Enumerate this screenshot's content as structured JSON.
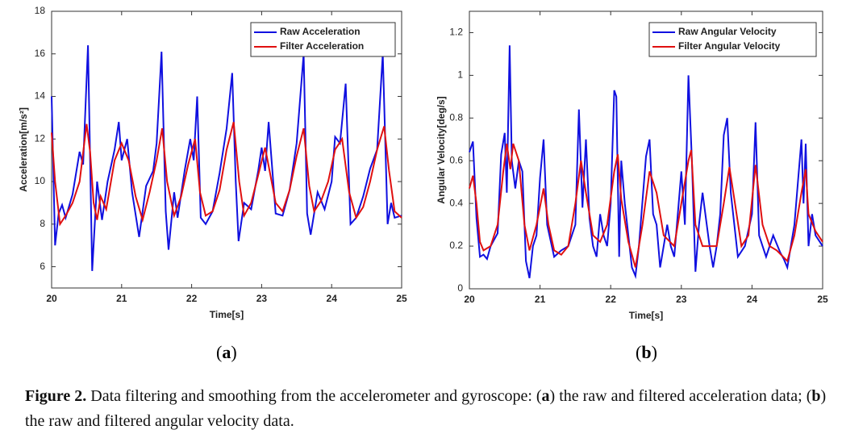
{
  "chart_data": [
    {
      "type": "line",
      "xlabel": "Time[s]",
      "ylabel": "Acceleration[m/s²]",
      "xlim": [
        20,
        25
      ],
      "xticks": [
        20,
        21,
        22,
        23,
        24,
        25
      ],
      "ylim": [
        5,
        18
      ],
      "yticks": [
        6,
        8,
        10,
        12,
        14,
        16,
        18
      ],
      "grid": false,
      "legend": "upper right",
      "series": [
        {
          "name": "Raw Acceleration",
          "color": "#1010e0",
          "x": [
            20.0,
            20.05,
            20.1,
            20.15,
            20.2,
            20.3,
            20.4,
            20.45,
            20.52,
            20.58,
            20.65,
            20.72,
            20.8,
            20.9,
            20.96,
            21.0,
            21.08,
            21.15,
            21.25,
            21.35,
            21.45,
            21.5,
            21.57,
            21.63,
            21.67,
            21.75,
            21.8,
            21.9,
            21.98,
            22.03,
            22.08,
            22.13,
            22.2,
            22.3,
            22.4,
            22.5,
            22.58,
            22.63,
            22.67,
            22.75,
            22.85,
            22.95,
            23.0,
            23.05,
            23.1,
            23.2,
            23.3,
            23.4,
            23.5,
            23.6,
            23.65,
            23.7,
            23.8,
            23.9,
            24.0,
            24.05,
            24.12,
            24.2,
            24.27,
            24.35,
            24.45,
            24.55,
            24.65,
            24.73,
            24.8,
            24.85,
            24.9,
            25.0
          ],
          "values": [
            14.0,
            7.0,
            8.5,
            8.9,
            8.3,
            9.4,
            11.4,
            10.8,
            16.4,
            5.8,
            10.0,
            8.2,
            10.0,
            11.5,
            12.8,
            11.0,
            12.0,
            9.5,
            7.4,
            9.8,
            10.5,
            11.8,
            16.1,
            8.6,
            6.8,
            9.5,
            8.3,
            10.5,
            12.0,
            11.0,
            14.0,
            8.3,
            8.0,
            8.6,
            10.4,
            12.5,
            15.1,
            10.0,
            7.2,
            9.0,
            8.7,
            10.5,
            11.6,
            10.5,
            12.8,
            8.5,
            8.4,
            9.6,
            11.8,
            16.0,
            8.5,
            7.5,
            9.5,
            8.7,
            10.0,
            12.1,
            11.8,
            14.6,
            8.0,
            8.3,
            9.3,
            10.6,
            11.5,
            16.0,
            8.0,
            9.0,
            8.3,
            8.4
          ]
        },
        {
          "name": "Filter Acceleration",
          "color": "#e01010",
          "x": [
            20.0,
            20.05,
            20.12,
            20.2,
            20.3,
            20.4,
            20.5,
            20.55,
            20.6,
            20.65,
            20.7,
            20.78,
            20.9,
            21.0,
            21.1,
            21.2,
            21.3,
            21.4,
            21.5,
            21.58,
            21.65,
            21.75,
            21.85,
            21.95,
            22.05,
            22.12,
            22.2,
            22.3,
            22.4,
            22.5,
            22.6,
            22.68,
            22.75,
            22.85,
            22.95,
            23.05,
            23.12,
            23.2,
            23.3,
            23.4,
            23.5,
            23.6,
            23.68,
            23.75,
            23.85,
            23.95,
            24.05,
            24.15,
            24.25,
            24.35,
            24.45,
            24.55,
            24.65,
            24.75,
            24.82,
            24.9,
            25.0
          ],
          "values": [
            12.3,
            10.0,
            8.0,
            8.4,
            9.0,
            10.0,
            12.7,
            11.4,
            9.0,
            8.2,
            9.3,
            8.7,
            11.0,
            11.8,
            11.0,
            9.3,
            8.2,
            9.5,
            11.0,
            12.5,
            10.0,
            8.4,
            9.3,
            10.8,
            12.0,
            9.5,
            8.4,
            8.6,
            9.6,
            11.5,
            12.8,
            10.0,
            8.4,
            9.0,
            10.3,
            11.6,
            10.4,
            9.0,
            8.6,
            9.6,
            11.2,
            12.5,
            9.8,
            8.6,
            9.1,
            10.0,
            11.5,
            12.0,
            9.5,
            8.3,
            8.8,
            10.0,
            11.5,
            12.6,
            10.5,
            8.6,
            8.3
          ]
        }
      ]
    },
    {
      "type": "line",
      "xlabel": "Time[s]",
      "ylabel": "Angular Velocity[deg/s]",
      "xlim": [
        20,
        25
      ],
      "xticks": [
        20,
        21,
        22,
        23,
        24,
        25
      ],
      "ylim": [
        0,
        1.3
      ],
      "yticks": [
        0,
        0.2,
        0.4,
        0.6,
        0.8,
        1,
        1.2
      ],
      "grid": false,
      "legend": "upper right",
      "series": [
        {
          "name": "Raw Angular Velocity",
          "color": "#1010e0",
          "x": [
            20.0,
            20.05,
            20.1,
            20.15,
            20.2,
            20.25,
            20.3,
            20.4,
            20.45,
            20.5,
            20.53,
            20.57,
            20.6,
            20.65,
            20.7,
            20.75,
            20.8,
            20.85,
            20.9,
            20.95,
            21.0,
            21.05,
            21.1,
            21.2,
            21.3,
            21.4,
            21.5,
            21.55,
            21.6,
            21.65,
            21.7,
            21.75,
            21.8,
            21.85,
            21.9,
            21.95,
            22.0,
            22.05,
            22.08,
            22.12,
            22.15,
            22.2,
            22.3,
            22.35,
            22.4,
            22.5,
            22.55,
            22.6,
            22.65,
            22.7,
            22.8,
            22.85,
            22.9,
            23.0,
            23.05,
            23.1,
            23.15,
            23.2,
            23.25,
            23.3,
            23.4,
            23.45,
            23.5,
            23.55,
            23.6,
            23.65,
            23.7,
            23.75,
            23.8,
            23.9,
            24.0,
            24.05,
            24.1,
            24.15,
            24.2,
            24.3,
            24.4,
            24.45,
            24.5,
            24.6,
            24.7,
            24.73,
            24.76,
            24.8,
            24.85,
            24.9,
            25.0
          ],
          "values": [
            0.64,
            0.69,
            0.33,
            0.15,
            0.16,
            0.14,
            0.2,
            0.26,
            0.63,
            0.73,
            0.45,
            1.14,
            0.6,
            0.47,
            0.6,
            0.55,
            0.13,
            0.05,
            0.2,
            0.25,
            0.52,
            0.7,
            0.3,
            0.15,
            0.18,
            0.2,
            0.3,
            0.84,
            0.38,
            0.7,
            0.33,
            0.2,
            0.15,
            0.35,
            0.25,
            0.2,
            0.4,
            0.93,
            0.9,
            0.15,
            0.6,
            0.4,
            0.1,
            0.06,
            0.2,
            0.62,
            0.7,
            0.35,
            0.3,
            0.1,
            0.3,
            0.2,
            0.15,
            0.55,
            0.3,
            1.0,
            0.6,
            0.08,
            0.3,
            0.45,
            0.2,
            0.1,
            0.2,
            0.35,
            0.72,
            0.8,
            0.45,
            0.3,
            0.15,
            0.2,
            0.35,
            0.78,
            0.25,
            0.2,
            0.15,
            0.25,
            0.17,
            0.14,
            0.1,
            0.3,
            0.7,
            0.4,
            0.68,
            0.2,
            0.35,
            0.25,
            0.2
          ]
        },
        {
          "name": "Filter Angular Velocity",
          "color": "#e01010",
          "x": [
            20.0,
            20.05,
            20.1,
            20.15,
            20.2,
            20.3,
            20.4,
            20.48,
            20.53,
            20.58,
            20.62,
            20.7,
            20.78,
            20.85,
            20.95,
            21.05,
            21.12,
            21.2,
            21.3,
            21.4,
            21.5,
            21.58,
            21.65,
            21.75,
            21.85,
            21.95,
            22.05,
            22.1,
            22.15,
            22.25,
            22.35,
            22.45,
            22.55,
            22.65,
            22.75,
            22.9,
            23.0,
            23.1,
            23.14,
            23.2,
            23.3,
            23.4,
            23.5,
            23.6,
            23.68,
            23.75,
            23.85,
            23.95,
            24.05,
            24.15,
            24.25,
            24.35,
            24.5,
            24.6,
            24.7,
            24.76,
            24.8,
            24.9,
            25.0
          ],
          "values": [
            0.47,
            0.53,
            0.4,
            0.22,
            0.18,
            0.2,
            0.3,
            0.55,
            0.68,
            0.56,
            0.68,
            0.6,
            0.3,
            0.18,
            0.3,
            0.47,
            0.3,
            0.18,
            0.16,
            0.2,
            0.4,
            0.6,
            0.45,
            0.25,
            0.22,
            0.3,
            0.55,
            0.63,
            0.42,
            0.22,
            0.1,
            0.3,
            0.55,
            0.45,
            0.25,
            0.2,
            0.4,
            0.6,
            0.65,
            0.3,
            0.2,
            0.2,
            0.2,
            0.4,
            0.57,
            0.42,
            0.2,
            0.25,
            0.58,
            0.3,
            0.2,
            0.18,
            0.13,
            0.25,
            0.45,
            0.56,
            0.35,
            0.27,
            0.22
          ]
        }
      ]
    }
  ],
  "panels": [
    [
      "(",
      "a",
      ")"
    ],
    [
      "(",
      "b",
      ")"
    ]
  ],
  "caption": [
    "Figure 2.",
    " Data filtering and smoothing from the accelerometer and gyroscope: (",
    "a",
    ") the raw and filtered acceleration data; (",
    "b",
    ") the raw and filtered angular velocity data."
  ]
}
